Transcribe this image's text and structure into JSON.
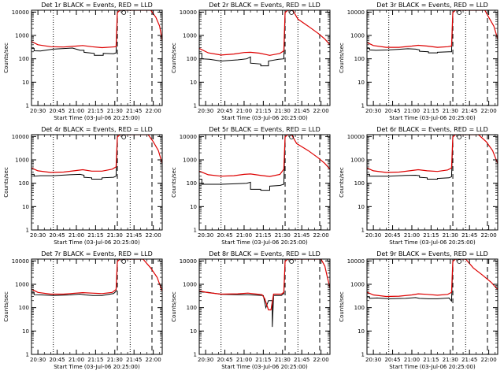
{
  "chart_data": {
    "type": "line",
    "layout": "3x3 grid of panels",
    "shared": {
      "ylabel": "Counts/sec",
      "xlabel": "Start Time (03-Jul-06 20:25:00)",
      "ylim": [
        1,
        12000
      ],
      "yscale": "log",
      "xlim": [
        "20:25",
        "22:07"
      ],
      "yticks": [
        "1",
        "10",
        "100",
        "1000",
        "10000"
      ],
      "xticks": [
        "20:30",
        "20:45",
        "21:00",
        "21:15",
        "21:30",
        "21:45",
        "22:00"
      ],
      "series_colors": {
        "events": "#000000",
        "lld": "#dd0000"
      },
      "dotted_vlines": [
        "20:42",
        "21:42"
      ],
      "dashed_vlines": [
        "21:32",
        "21:59"
      ],
      "grid": false
    },
    "panels": [
      {
        "title": "Det 1r BLACK = Events, RED = LLD",
        "events": [
          [
            "20:25",
            280
          ],
          [
            "20:27",
            280
          ],
          [
            "20:27",
            220
          ],
          [
            "20:32",
            215
          ],
          [
            "20:42",
            260
          ],
          [
            "20:57",
            290
          ],
          [
            "21:03",
            230
          ],
          [
            "21:06",
            230
          ],
          [
            "21:06",
            190
          ],
          [
            "21:14",
            170
          ],
          [
            "21:14",
            140
          ],
          [
            "21:21",
            140
          ],
          [
            "21:21",
            170
          ],
          [
            "21:29",
            165
          ],
          [
            "21:31",
            180
          ],
          [
            "21:32",
            7000
          ]
        ],
        "lld": [
          [
            "20:25",
            550
          ],
          [
            "20:30",
            400
          ],
          [
            "20:40",
            330
          ],
          [
            "20:50",
            320
          ],
          [
            "21:00",
            350
          ],
          [
            "21:05",
            370
          ],
          [
            "21:12",
            330
          ],
          [
            "21:20",
            300
          ],
          [
            "21:28",
            320
          ],
          [
            "21:31",
            330
          ],
          [
            "21:32",
            9500
          ],
          [
            "21:34",
            12000
          ],
          [
            "21:58",
            12000
          ],
          [
            "22:02",
            6000
          ],
          [
            "22:05",
            2500
          ],
          [
            "22:07",
            600
          ]
        ]
      },
      {
        "title": "Det 2r BLACK = Events, RED = LLD",
        "events": [
          [
            "20:25",
            170
          ],
          [
            "20:27",
            170
          ],
          [
            "20:27",
            100
          ],
          [
            "20:33",
            95
          ],
          [
            "20:42",
            80
          ],
          [
            "20:55",
            90
          ],
          [
            "21:02",
            100
          ],
          [
            "21:05",
            120
          ],
          [
            "21:05",
            65
          ],
          [
            "21:13",
            60
          ],
          [
            "21:13",
            50
          ],
          [
            "21:19",
            50
          ],
          [
            "21:19",
            80
          ],
          [
            "21:27",
            95
          ],
          [
            "21:31",
            100
          ],
          [
            "21:32",
            7000
          ]
        ],
        "lld": [
          [
            "20:25",
            280
          ],
          [
            "20:32",
            180
          ],
          [
            "20:42",
            145
          ],
          [
            "20:52",
            160
          ],
          [
            "21:00",
            185
          ],
          [
            "21:05",
            190
          ],
          [
            "21:12",
            175
          ],
          [
            "21:20",
            140
          ],
          [
            "21:28",
            170
          ],
          [
            "21:31",
            220
          ],
          [
            "21:32",
            9500
          ],
          [
            "21:34",
            12000
          ],
          [
            "21:38",
            12000
          ],
          [
            "21:42",
            5000
          ],
          [
            "21:50",
            2500
          ],
          [
            "21:58",
            1200
          ],
          [
            "22:03",
            700
          ],
          [
            "22:07",
            400
          ]
        ]
      },
      {
        "title": "Det 3r BLACK = Events, RED = LLD",
        "events": [
          [
            "20:25",
            280
          ],
          [
            "20:27",
            280
          ],
          [
            "20:27",
            240
          ],
          [
            "20:32",
            230
          ],
          [
            "20:42",
            240
          ],
          [
            "20:57",
            270
          ],
          [
            "21:03",
            260
          ],
          [
            "21:06",
            240
          ],
          [
            "21:06",
            210
          ],
          [
            "21:13",
            200
          ],
          [
            "21:13",
            180
          ],
          [
            "21:20",
            180
          ],
          [
            "21:20",
            190
          ],
          [
            "21:29",
            200
          ],
          [
            "21:31",
            200
          ],
          [
            "21:32",
            7000
          ]
        ],
        "lld": [
          [
            "20:25",
            500
          ],
          [
            "20:30",
            370
          ],
          [
            "20:40",
            310
          ],
          [
            "20:50",
            310
          ],
          [
            "21:00",
            350
          ],
          [
            "21:05",
            380
          ],
          [
            "21:12",
            350
          ],
          [
            "21:20",
            310
          ],
          [
            "21:28",
            330
          ],
          [
            "21:31",
            350
          ],
          [
            "21:32",
            9500
          ],
          [
            "21:34",
            12000
          ],
          [
            "21:57",
            12000
          ],
          [
            "22:00",
            6000
          ],
          [
            "22:04",
            2500
          ],
          [
            "22:07",
            700
          ]
        ]
      },
      {
        "title": "Det 4r BLACK = Events, RED = LLD",
        "events": [
          [
            "20:25",
            240
          ],
          [
            "20:27",
            240
          ],
          [
            "20:27",
            200
          ],
          [
            "20:32",
            210
          ],
          [
            "20:42",
            210
          ],
          [
            "20:55",
            230
          ],
          [
            "21:03",
            240
          ],
          [
            "21:06",
            220
          ],
          [
            "21:06",
            180
          ],
          [
            "21:12",
            170
          ],
          [
            "21:12",
            150
          ],
          [
            "21:20",
            150
          ],
          [
            "21:20",
            170
          ],
          [
            "21:29",
            180
          ],
          [
            "21:31",
            200
          ],
          [
            "21:32",
            7000
          ]
        ],
        "lld": [
          [
            "20:25",
            450
          ],
          [
            "20:30",
            340
          ],
          [
            "20:40",
            290
          ],
          [
            "20:50",
            300
          ],
          [
            "21:00",
            350
          ],
          [
            "21:05",
            380
          ],
          [
            "21:12",
            330
          ],
          [
            "21:20",
            330
          ],
          [
            "21:28",
            400
          ],
          [
            "21:31",
            500
          ],
          [
            "21:32",
            9500
          ],
          [
            "21:34",
            12000
          ],
          [
            "21:56",
            12000
          ],
          [
            "22:00",
            6000
          ],
          [
            "22:04",
            2500
          ],
          [
            "22:07",
            700
          ]
        ]
      },
      {
        "title": "Det 5r BLACK = Events, RED = LLD",
        "events": [
          [
            "20:25",
            150
          ],
          [
            "20:27",
            150
          ],
          [
            "20:27",
            90
          ],
          [
            "20:33",
            90
          ],
          [
            "20:42",
            90
          ],
          [
            "20:55",
            95
          ],
          [
            "21:02",
            100
          ],
          [
            "21:05",
            110
          ],
          [
            "21:05",
            55
          ],
          [
            "21:13",
            55
          ],
          [
            "21:13",
            50
          ],
          [
            "21:20",
            50
          ],
          [
            "21:20",
            75
          ],
          [
            "21:28",
            80
          ],
          [
            "21:31",
            90
          ],
          [
            "21:32",
            7000
          ]
        ],
        "lld": [
          [
            "20:25",
            330
          ],
          [
            "20:32",
            230
          ],
          [
            "20:42",
            200
          ],
          [
            "20:52",
            210
          ],
          [
            "21:00",
            240
          ],
          [
            "21:05",
            250
          ],
          [
            "21:12",
            220
          ],
          [
            "21:20",
            195
          ],
          [
            "21:28",
            240
          ],
          [
            "21:31",
            400
          ],
          [
            "21:32",
            9500
          ],
          [
            "21:34",
            12000
          ],
          [
            "21:37",
            12000
          ],
          [
            "21:41",
            5000
          ],
          [
            "21:50",
            2500
          ],
          [
            "21:58",
            1200
          ],
          [
            "22:03",
            700
          ],
          [
            "22:07",
            400
          ]
        ]
      },
      {
        "title": "Det 6r BLACK = Events, RED = LLD",
        "events": [
          [
            "20:25",
            240
          ],
          [
            "20:27",
            240
          ],
          [
            "20:27",
            200
          ],
          [
            "20:32",
            200
          ],
          [
            "20:42",
            200
          ],
          [
            "20:55",
            215
          ],
          [
            "21:03",
            220
          ],
          [
            "21:06",
            210
          ],
          [
            "21:06",
            180
          ],
          [
            "21:12",
            170
          ],
          [
            "21:12",
            150
          ],
          [
            "21:20",
            150
          ],
          [
            "21:20",
            160
          ],
          [
            "21:29",
            170
          ],
          [
            "21:31",
            190
          ],
          [
            "21:32",
            7000
          ]
        ],
        "lld": [
          [
            "20:25",
            450
          ],
          [
            "20:30",
            340
          ],
          [
            "20:40",
            290
          ],
          [
            "20:50",
            300
          ],
          [
            "21:00",
            350
          ],
          [
            "21:05",
            380
          ],
          [
            "21:12",
            340
          ],
          [
            "21:20",
            320
          ],
          [
            "21:28",
            370
          ],
          [
            "21:31",
            450
          ],
          [
            "21:32",
            9500
          ],
          [
            "21:34",
            12000
          ],
          [
            "21:52",
            12000
          ],
          [
            "21:58",
            6000
          ],
          [
            "22:03",
            2500
          ],
          [
            "22:07",
            700
          ]
        ]
      },
      {
        "title": "Det 7r BLACK = Events, RED = LLD",
        "events": [
          [
            "20:25",
            450
          ],
          [
            "20:27",
            450
          ],
          [
            "20:27",
            360
          ],
          [
            "20:33",
            350
          ],
          [
            "20:42",
            330
          ],
          [
            "20:55",
            350
          ],
          [
            "21:03",
            380
          ],
          [
            "21:07",
            350
          ],
          [
            "21:13",
            330
          ],
          [
            "21:20",
            330
          ],
          [
            "21:29",
            400
          ],
          [
            "21:31",
            500
          ],
          [
            "21:32",
            7000
          ]
        ],
        "lld": [
          [
            "20:25",
            620
          ],
          [
            "20:30",
            450
          ],
          [
            "20:40",
            380
          ],
          [
            "20:50",
            380
          ],
          [
            "21:00",
            420
          ],
          [
            "21:05",
            440
          ],
          [
            "21:12",
            420
          ],
          [
            "21:20",
            400
          ],
          [
            "21:28",
            450
          ],
          [
            "21:31",
            600
          ],
          [
            "21:32",
            9500
          ],
          [
            "21:34",
            12000
          ],
          [
            "21:52",
            12000
          ],
          [
            "21:58",
            5000
          ],
          [
            "22:03",
            2000
          ],
          [
            "22:07",
            500
          ]
        ]
      },
      {
        "title": "Det 8r BLACK = Events, RED = LLD",
        "events": [
          [
            "20:25",
            470
          ],
          [
            "20:32",
            450
          ],
          [
            "20:42",
            370
          ],
          [
            "20:55",
            360
          ],
          [
            "21:03",
            360
          ],
          [
            "21:10",
            340
          ],
          [
            "21:15",
            330
          ],
          [
            "21:17",
            100
          ],
          [
            "21:19",
            200
          ],
          [
            "21:22",
            200
          ],
          [
            "21:22",
            15
          ],
          [
            "21:23",
            330
          ],
          [
            "21:29",
            330
          ],
          [
            "21:31",
            400
          ],
          [
            "21:32",
            7000
          ]
        ],
        "lld": [
          [
            "20:25",
            520
          ],
          [
            "20:32",
            440
          ],
          [
            "20:42",
            380
          ],
          [
            "20:55",
            390
          ],
          [
            "21:03",
            420
          ],
          [
            "21:10",
            380
          ],
          [
            "21:14",
            360
          ],
          [
            "21:16",
            250
          ],
          [
            "21:19",
            80
          ],
          [
            "21:21",
            80
          ],
          [
            "21:23",
            380
          ],
          [
            "21:29",
            380
          ],
          [
            "21:31",
            450
          ],
          [
            "21:32",
            9500
          ],
          [
            "21:34",
            12000
          ],
          [
            "22:00",
            12000
          ],
          [
            "22:03",
            6000
          ],
          [
            "22:05",
            2000
          ],
          [
            "22:07",
            700
          ]
        ]
      },
      {
        "title": "Det 9r BLACK = Events, RED = LLD",
        "events": [
          [
            "20:25",
            290
          ],
          [
            "20:27",
            290
          ],
          [
            "20:27",
            250
          ],
          [
            "20:33",
            260
          ],
          [
            "20:42",
            240
          ],
          [
            "20:55",
            250
          ],
          [
            "21:03",
            270
          ],
          [
            "21:06",
            250
          ],
          [
            "21:13",
            240
          ],
          [
            "21:20",
            240
          ],
          [
            "21:29",
            260
          ],
          [
            "21:31",
            190
          ],
          [
            "21:32",
            7000
          ]
        ],
        "lld": [
          [
            "20:25",
            460
          ],
          [
            "20:30",
            350
          ],
          [
            "20:40",
            300
          ],
          [
            "20:50",
            310
          ],
          [
            "21:00",
            350
          ],
          [
            "21:05",
            390
          ],
          [
            "21:12",
            370
          ],
          [
            "21:20",
            340
          ],
          [
            "21:28",
            370
          ],
          [
            "21:31",
            450
          ],
          [
            "21:32",
            9500
          ],
          [
            "21:34",
            12000
          ],
          [
            "21:42",
            12000
          ],
          [
            "21:48",
            5000
          ],
          [
            "21:55",
            2500
          ],
          [
            "22:02",
            1200
          ],
          [
            "22:07",
            600
          ]
        ]
      }
    ]
  }
}
